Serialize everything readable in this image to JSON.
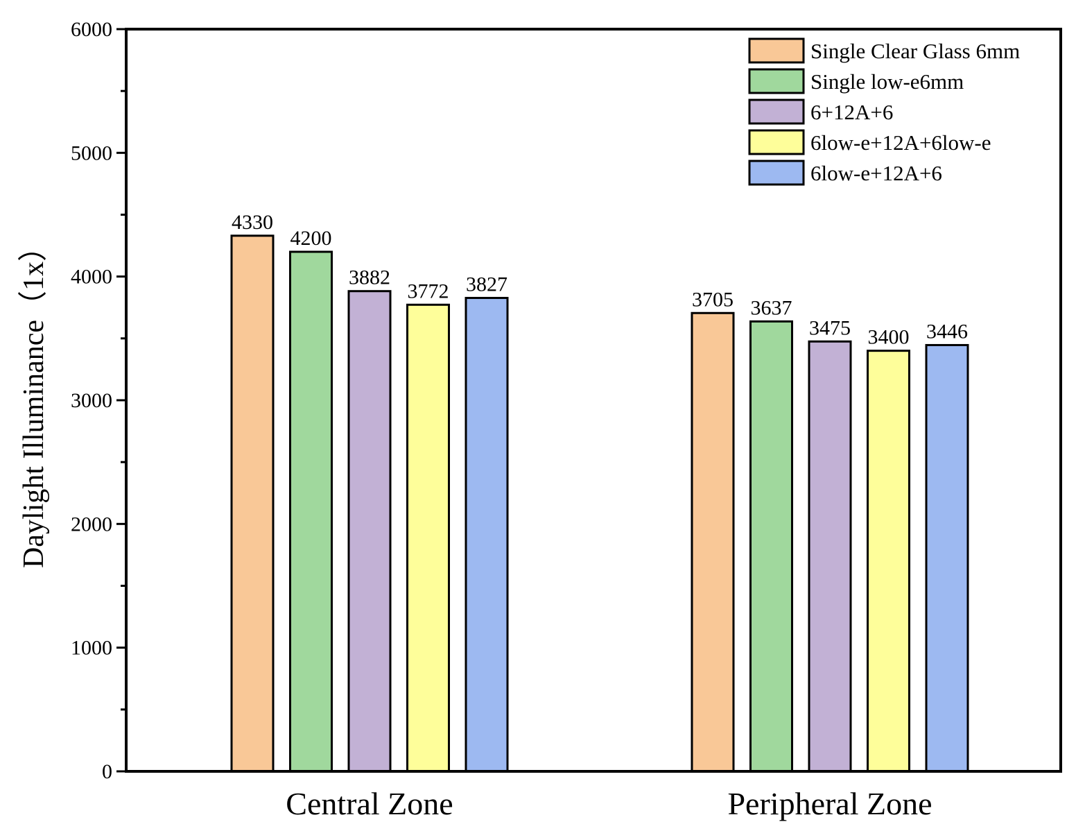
{
  "chart_data": {
    "type": "bar",
    "title": "",
    "xlabel": "",
    "ylabel": "Daylight Illuminance（1x）",
    "ylim": [
      0,
      6000
    ],
    "yticks": [
      0,
      1000,
      2000,
      3000,
      4000,
      5000,
      6000
    ],
    "grid": false,
    "legend_position": "top-right",
    "categories": [
      "Central Zone",
      "Peripheral Zone"
    ],
    "series": [
      {
        "name": "Single Clear Glass 6mm",
        "color": "#F9C897",
        "values": [
          4330,
          3705
        ]
      },
      {
        "name": "Single low-e6mm",
        "color": "#A0D89D",
        "values": [
          4200,
          3637
        ]
      },
      {
        "name": "6+12A+6",
        "color": "#C2B1D5",
        "values": [
          3882,
          3475
        ]
      },
      {
        "name": "6low-e+12A+6low-e",
        "color": "#FEFE9A",
        "values": [
          3772,
          3400
        ]
      },
      {
        "name": "6low-e+12A+6",
        "color": "#9DB9F1",
        "values": [
          3827,
          3446
        ]
      }
    ]
  }
}
